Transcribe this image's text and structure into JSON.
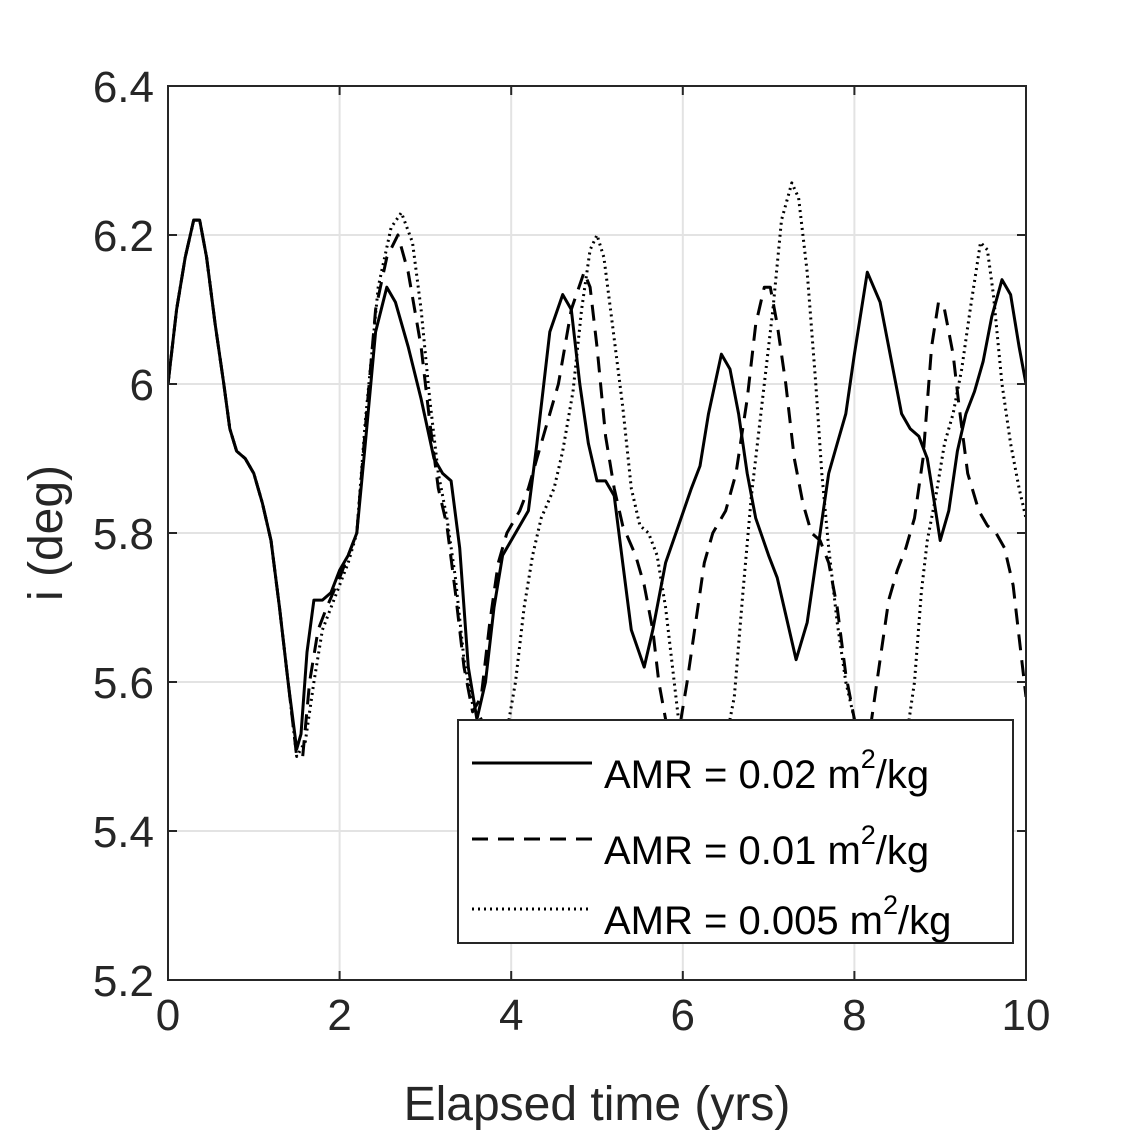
{
  "chart_data": {
    "type": "line",
    "title": "",
    "xlabel": "Elapsed time (yrs)",
    "ylabel": "i (deg)",
    "xlim": [
      0,
      10
    ],
    "ylim": [
      5.2,
      6.4
    ],
    "xticks": [
      0,
      2,
      4,
      6,
      8,
      10
    ],
    "xtick_labels": [
      "0",
      "2",
      "4",
      "6",
      "8",
      "10"
    ],
    "yticks": [
      5.2,
      5.4,
      5.6,
      5.8,
      6.0,
      6.2,
      6.4
    ],
    "ytick_labels": [
      "5.2",
      "5.4",
      "5.6",
      "5.8",
      "6",
      "6.2",
      "6.4"
    ],
    "grid": true,
    "legend_position": "bottom-right",
    "series": [
      {
        "name": "AMR = 0.02 m²/kg",
        "legend_prefix": "AMR = 0.02 m",
        "legend_sup": "2",
        "legend_suffix": "/kg",
        "style": "solid",
        "color": "#000000",
        "points": [
          [
            0,
            6.0
          ],
          [
            0.1,
            6.1
          ],
          [
            0.2,
            6.17
          ],
          [
            0.3,
            6.22
          ],
          [
            0.37,
            6.22
          ],
          [
            0.45,
            6.17
          ],
          [
            0.55,
            6.08
          ],
          [
            0.65,
            6.0
          ],
          [
            0.72,
            5.94
          ],
          [
            0.8,
            5.91
          ],
          [
            0.9,
            5.9
          ],
          [
            1.0,
            5.88
          ],
          [
            1.1,
            5.84
          ],
          [
            1.2,
            5.79
          ],
          [
            1.3,
            5.7
          ],
          [
            1.4,
            5.6
          ],
          [
            1.5,
            5.51
          ],
          [
            1.55,
            5.53
          ],
          [
            1.62,
            5.64
          ],
          [
            1.7,
            5.71
          ],
          [
            1.8,
            5.71
          ],
          [
            1.9,
            5.72
          ],
          [
            2.0,
            5.75
          ],
          [
            2.1,
            5.77
          ],
          [
            2.2,
            5.8
          ],
          [
            2.3,
            5.92
          ],
          [
            2.42,
            6.07
          ],
          [
            2.55,
            6.13
          ],
          [
            2.65,
            6.11
          ],
          [
            2.8,
            6.05
          ],
          [
            2.95,
            5.98
          ],
          [
            3.1,
            5.9
          ],
          [
            3.2,
            5.88
          ],
          [
            3.3,
            5.87
          ],
          [
            3.4,
            5.78
          ],
          [
            3.5,
            5.62
          ],
          [
            3.6,
            5.55
          ],
          [
            3.7,
            5.6
          ],
          [
            3.8,
            5.7
          ],
          [
            3.9,
            5.77
          ],
          [
            4.0,
            5.79
          ],
          [
            4.1,
            5.81
          ],
          [
            4.2,
            5.83
          ],
          [
            4.3,
            5.92
          ],
          [
            4.45,
            6.07
          ],
          [
            4.6,
            6.12
          ],
          [
            4.7,
            6.1
          ],
          [
            4.8,
            6.0
          ],
          [
            4.9,
            5.92
          ],
          [
            5.0,
            5.87
          ],
          [
            5.1,
            5.87
          ],
          [
            5.2,
            5.85
          ],
          [
            5.3,
            5.76
          ],
          [
            5.4,
            5.67
          ],
          [
            5.55,
            5.62
          ],
          [
            5.65,
            5.67
          ],
          [
            5.8,
            5.76
          ],
          [
            5.95,
            5.81
          ],
          [
            6.1,
            5.86
          ],
          [
            6.2,
            5.89
          ],
          [
            6.3,
            5.96
          ],
          [
            6.45,
            6.04
          ],
          [
            6.55,
            6.02
          ],
          [
            6.65,
            5.96
          ],
          [
            6.75,
            5.88
          ],
          [
            6.85,
            5.82
          ],
          [
            7.0,
            5.77
          ],
          [
            7.1,
            5.74
          ],
          [
            7.2,
            5.69
          ],
          [
            7.32,
            5.63
          ],
          [
            7.45,
            5.68
          ],
          [
            7.6,
            5.8
          ],
          [
            7.7,
            5.88
          ],
          [
            7.8,
            5.92
          ],
          [
            7.9,
            5.96
          ],
          [
            8.0,
            6.04
          ],
          [
            8.15,
            6.15
          ],
          [
            8.3,
            6.11
          ],
          [
            8.45,
            6.02
          ],
          [
            8.55,
            5.96
          ],
          [
            8.65,
            5.94
          ],
          [
            8.75,
            5.93
          ],
          [
            8.85,
            5.9
          ],
          [
            8.92,
            5.85
          ],
          [
            9.0,
            5.79
          ],
          [
            9.1,
            5.83
          ],
          [
            9.2,
            5.91
          ],
          [
            9.3,
            5.96
          ],
          [
            9.4,
            5.99
          ],
          [
            9.5,
            6.03
          ],
          [
            9.6,
            6.09
          ],
          [
            9.72,
            6.14
          ],
          [
            9.82,
            6.12
          ],
          [
            9.92,
            6.05
          ],
          [
            10.0,
            6.0
          ]
        ]
      },
      {
        "name": "AMR = 0.01 m²/kg",
        "legend_prefix": "AMR = 0.01 m",
        "legend_sup": "2",
        "legend_suffix": "/kg",
        "style": "dashed",
        "color": "#000000",
        "points": [
          [
            0,
            6.0
          ],
          [
            0.1,
            6.1
          ],
          [
            0.2,
            6.17
          ],
          [
            0.3,
            6.22
          ],
          [
            0.37,
            6.22
          ],
          [
            0.45,
            6.17
          ],
          [
            0.55,
            6.08
          ],
          [
            0.65,
            6.0
          ],
          [
            0.72,
            5.94
          ],
          [
            0.8,
            5.91
          ],
          [
            0.9,
            5.9
          ],
          [
            1.0,
            5.88
          ],
          [
            1.1,
            5.84
          ],
          [
            1.2,
            5.79
          ],
          [
            1.3,
            5.7
          ],
          [
            1.4,
            5.6
          ],
          [
            1.5,
            5.5
          ],
          [
            1.57,
            5.5
          ],
          [
            1.65,
            5.6
          ],
          [
            1.75,
            5.67
          ],
          [
            1.85,
            5.7
          ],
          [
            2.0,
            5.74
          ],
          [
            2.1,
            5.77
          ],
          [
            2.2,
            5.8
          ],
          [
            2.3,
            5.94
          ],
          [
            2.42,
            6.1
          ],
          [
            2.55,
            6.17
          ],
          [
            2.68,
            6.2
          ],
          [
            2.8,
            6.15
          ],
          [
            2.95,
            6.05
          ],
          [
            3.05,
            5.95
          ],
          [
            3.15,
            5.86
          ],
          [
            3.25,
            5.81
          ],
          [
            3.35,
            5.72
          ],
          [
            3.45,
            5.62
          ],
          [
            3.55,
            5.56
          ],
          [
            3.65,
            5.58
          ],
          [
            3.75,
            5.68
          ],
          [
            3.85,
            5.76
          ],
          [
            3.95,
            5.8
          ],
          [
            4.1,
            5.83
          ],
          [
            4.2,
            5.86
          ],
          [
            4.3,
            5.9
          ],
          [
            4.45,
            5.96
          ],
          [
            4.55,
            6.0
          ],
          [
            4.7,
            6.1
          ],
          [
            4.85,
            6.15
          ],
          [
            4.92,
            6.13
          ],
          [
            5.0,
            6.05
          ],
          [
            5.1,
            5.93
          ],
          [
            5.2,
            5.86
          ],
          [
            5.3,
            5.81
          ],
          [
            5.45,
            5.77
          ],
          [
            5.55,
            5.73
          ],
          [
            5.65,
            5.67
          ],
          [
            5.72,
            5.6
          ],
          [
            5.8,
            5.55
          ],
          [
            5.88,
            5.52
          ],
          [
            5.95,
            5.53
          ],
          [
            6.05,
            5.6
          ],
          [
            6.15,
            5.68
          ],
          [
            6.25,
            5.76
          ],
          [
            6.35,
            5.8
          ],
          [
            6.5,
            5.83
          ],
          [
            6.62,
            5.88
          ],
          [
            6.75,
            5.98
          ],
          [
            6.85,
            6.08
          ],
          [
            6.95,
            6.13
          ],
          [
            7.02,
            6.13
          ],
          [
            7.1,
            6.08
          ],
          [
            7.2,
            6.0
          ],
          [
            7.3,
            5.9
          ],
          [
            7.4,
            5.84
          ],
          [
            7.5,
            5.8
          ],
          [
            7.6,
            5.79
          ],
          [
            7.7,
            5.76
          ],
          [
            7.8,
            5.7
          ],
          [
            7.9,
            5.61
          ],
          [
            8.0,
            5.55
          ],
          [
            8.1,
            5.5
          ],
          [
            8.2,
            5.55
          ],
          [
            8.3,
            5.63
          ],
          [
            8.4,
            5.71
          ],
          [
            8.5,
            5.75
          ],
          [
            8.6,
            5.78
          ],
          [
            8.7,
            5.82
          ],
          [
            8.8,
            5.9
          ],
          [
            8.9,
            6.05
          ],
          [
            8.98,
            6.11
          ],
          [
            9.05,
            6.1
          ],
          [
            9.15,
            6.04
          ],
          [
            9.22,
            5.97
          ],
          [
            9.32,
            5.88
          ],
          [
            9.45,
            5.83
          ],
          [
            9.55,
            5.81
          ],
          [
            9.65,
            5.8
          ],
          [
            9.75,
            5.78
          ],
          [
            9.85,
            5.73
          ],
          [
            9.95,
            5.63
          ],
          [
            10.0,
            5.58
          ]
        ]
      },
      {
        "name": "AMR = 0.005 m²/kg",
        "legend_prefix": "AMR = 0.005 m",
        "legend_sup": "2",
        "legend_suffix": "/kg",
        "style": "dotted",
        "color": "#000000",
        "points": [
          [
            0,
            6.0
          ],
          [
            0.1,
            6.1
          ],
          [
            0.2,
            6.17
          ],
          [
            0.3,
            6.22
          ],
          [
            0.37,
            6.22
          ],
          [
            0.45,
            6.17
          ],
          [
            0.55,
            6.08
          ],
          [
            0.65,
            6.0
          ],
          [
            0.72,
            5.94
          ],
          [
            0.8,
            5.91
          ],
          [
            0.9,
            5.9
          ],
          [
            1.0,
            5.88
          ],
          [
            1.1,
            5.84
          ],
          [
            1.2,
            5.79
          ],
          [
            1.3,
            5.7
          ],
          [
            1.4,
            5.6
          ],
          [
            1.5,
            5.5
          ],
          [
            1.6,
            5.52
          ],
          [
            1.7,
            5.6
          ],
          [
            1.8,
            5.67
          ],
          [
            1.9,
            5.7
          ],
          [
            2.0,
            5.73
          ],
          [
            2.1,
            5.76
          ],
          [
            2.2,
            5.8
          ],
          [
            2.3,
            5.95
          ],
          [
            2.45,
            6.13
          ],
          [
            2.6,
            6.21
          ],
          [
            2.72,
            6.23
          ],
          [
            2.85,
            6.19
          ],
          [
            2.95,
            6.1
          ],
          [
            3.05,
            5.98
          ],
          [
            3.15,
            5.88
          ],
          [
            3.25,
            5.82
          ],
          [
            3.35,
            5.74
          ],
          [
            3.45,
            5.63
          ],
          [
            3.55,
            5.57
          ],
          [
            3.65,
            5.55
          ],
          [
            3.75,
            5.52
          ],
          [
            3.85,
            5.5
          ],
          [
            3.9,
            5.5
          ],
          [
            4.05,
            5.6
          ],
          [
            4.15,
            5.7
          ],
          [
            4.25,
            5.77
          ],
          [
            4.35,
            5.82
          ],
          [
            4.5,
            5.86
          ],
          [
            4.6,
            5.91
          ],
          [
            4.72,
            5.99
          ],
          [
            4.82,
            6.1
          ],
          [
            4.92,
            6.18
          ],
          [
            5.0,
            6.2
          ],
          [
            5.08,
            6.17
          ],
          [
            5.18,
            6.08
          ],
          [
            5.3,
            5.97
          ],
          [
            5.4,
            5.86
          ],
          [
            5.5,
            5.81
          ],
          [
            5.6,
            5.8
          ],
          [
            5.7,
            5.77
          ],
          [
            5.8,
            5.7
          ],
          [
            5.88,
            5.62
          ],
          [
            5.95,
            5.55
          ],
          [
            6.0,
            5.5
          ],
          [
            6.1,
            5.5
          ],
          [
            6.2,
            5.5
          ],
          [
            6.3,
            5.5
          ],
          [
            6.42,
            5.51
          ],
          [
            6.5,
            5.52
          ],
          [
            6.6,
            5.58
          ],
          [
            6.7,
            5.72
          ],
          [
            6.8,
            5.85
          ],
          [
            6.92,
            5.97
          ],
          [
            7.05,
            6.1
          ],
          [
            7.15,
            6.22
          ],
          [
            7.27,
            6.27
          ],
          [
            7.35,
            6.25
          ],
          [
            7.45,
            6.15
          ],
          [
            7.55,
            6.0
          ],
          [
            7.62,
            5.88
          ],
          [
            7.7,
            5.78
          ],
          [
            7.8,
            5.68
          ],
          [
            7.9,
            5.6
          ],
          [
            8.0,
            5.55
          ],
          [
            8.1,
            5.52
          ],
          [
            8.2,
            5.5
          ],
          [
            8.3,
            5.5
          ],
          [
            8.42,
            5.5
          ],
          [
            8.5,
            5.5
          ],
          [
            8.6,
            5.52
          ],
          [
            8.7,
            5.6
          ],
          [
            8.78,
            5.72
          ],
          [
            8.85,
            5.79
          ],
          [
            8.95,
            5.85
          ],
          [
            9.05,
            5.92
          ],
          [
            9.15,
            5.96
          ],
          [
            9.25,
            6.02
          ],
          [
            9.35,
            6.1
          ],
          [
            9.47,
            6.19
          ],
          [
            9.55,
            6.18
          ],
          [
            9.62,
            6.12
          ],
          [
            9.72,
            6.0
          ],
          [
            9.82,
            5.92
          ],
          [
            9.92,
            5.86
          ],
          [
            10.0,
            5.82
          ]
        ]
      }
    ]
  }
}
